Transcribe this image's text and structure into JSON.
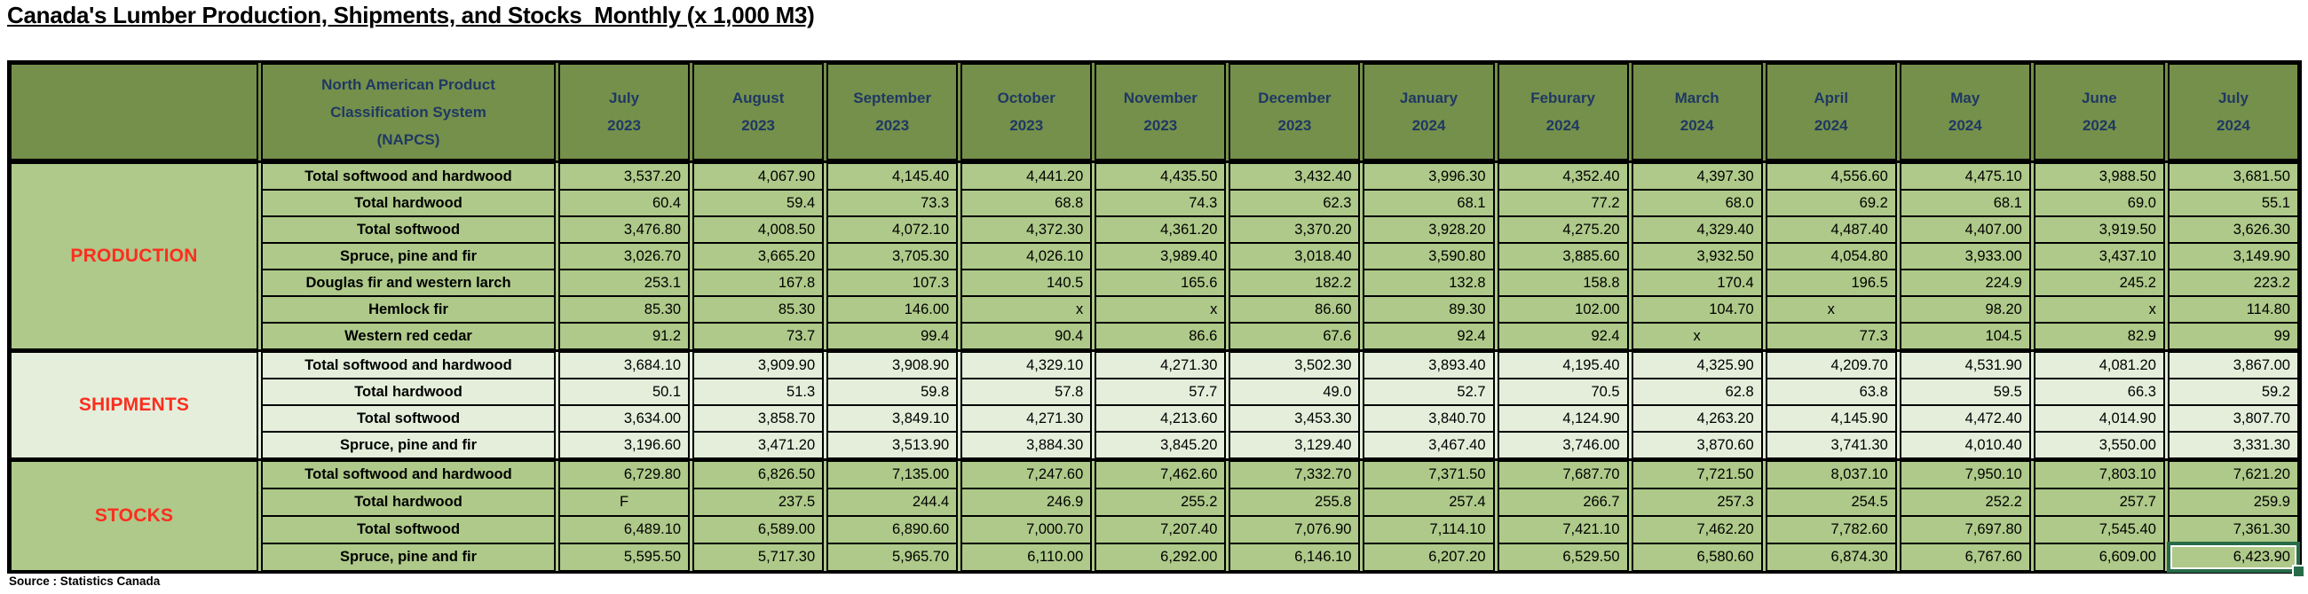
{
  "title": "Canada's Lumber Production, Shipments, and Stocks  Monthly (x 1,000 M3)",
  "source_note": "Source : Statistics Canada",
  "colors": {
    "header_bg": "#75904A",
    "band_bg": "#AEC989",
    "shipments_bg": "#E4EEDB",
    "header_text": "#1F3864",
    "section_text": "#FB2E1F",
    "selection": "#276C49",
    "grid_line": "#000000"
  },
  "header": {
    "napcs_label": "North American Product Classification System (NAPCS)",
    "columns": [
      {
        "month": "July",
        "year": "2023"
      },
      {
        "month": "August",
        "year": "2023"
      },
      {
        "month": "September",
        "year": "2023"
      },
      {
        "month": "October",
        "year": "2023"
      },
      {
        "month": "November",
        "year": "2023"
      },
      {
        "month": "December",
        "year": "2023"
      },
      {
        "month": "January",
        "year": "2024"
      },
      {
        "month": "Feburary",
        "year": "2024"
      },
      {
        "month": "March",
        "year": "2024"
      },
      {
        "month": "April",
        "year": "2024"
      },
      {
        "month": "May",
        "year": "2024"
      },
      {
        "month": "June",
        "year": "2024"
      },
      {
        "month": "July",
        "year": "2024"
      }
    ]
  },
  "sections": [
    {
      "name": "PRODUCTION",
      "rows": [
        {
          "label": "Total softwood and hardwood",
          "values": [
            "3,537.20",
            "4,067.90",
            "4,145.40",
            "4,441.20",
            "4,435.50",
            "3,432.40",
            "3,996.30",
            "4,352.40",
            "4,397.30",
            "4,556.60",
            "4,475.10",
            "3,988.50",
            "3,681.50"
          ],
          "center": []
        },
        {
          "label": "Total hardwood",
          "values": [
            "60.4",
            "59.4",
            "73.3",
            "68.8",
            "74.3",
            "62.3",
            "68.1",
            "77.2",
            "68.0",
            "69.2",
            "68.1",
            "69.0",
            "55.1"
          ],
          "center": []
        },
        {
          "label": "Total softwood",
          "values": [
            "3,476.80",
            "4,008.50",
            "4,072.10",
            "4,372.30",
            "4,361.20",
            "3,370.20",
            "3,928.20",
            "4,275.20",
            "4,329.40",
            "4,487.40",
            "4,407.00",
            "3,919.50",
            "3,626.30"
          ],
          "center": []
        },
        {
          "label": "Spruce, pine and fir",
          "values": [
            "3,026.70",
            "3,665.20",
            "3,705.30",
            "4,026.10",
            "3,989.40",
            "3,018.40",
            "3,590.80",
            "3,885.60",
            "3,932.50",
            "4,054.80",
            "3,933.00",
            "3,437.10",
            "3,149.90"
          ],
          "center": []
        },
        {
          "label": "Douglas fir and western larch",
          "values": [
            "253.1",
            "167.8",
            "107.3",
            "140.5",
            "165.6",
            "182.2",
            "132.8",
            "158.8",
            "170.4",
            "196.5",
            "224.9",
            "245.2",
            "223.2"
          ],
          "center": []
        },
        {
          "label": "Hemlock fir",
          "values": [
            "85.30",
            "85.30",
            "146.00",
            "x",
            "x",
            "86.60",
            "89.30",
            "102.00",
            "104.70",
            "x",
            "98.20",
            "x",
            "114.80"
          ],
          "center": [
            9
          ]
        },
        {
          "label": "Western red cedar",
          "values": [
            "91.2",
            "73.7",
            "99.4",
            "90.4",
            "86.6",
            "67.6",
            "92.4",
            "92.4",
            "x",
            "77.3",
            "104.5",
            "82.9",
            "99"
          ],
          "center": [
            8
          ]
        }
      ]
    },
    {
      "name": "SHIPMENTS",
      "rows": [
        {
          "label": "Total softwood and hardwood",
          "values": [
            "3,684.10",
            "3,909.90",
            "3,908.90",
            "4,329.10",
            "4,271.30",
            "3,502.30",
            "3,893.40",
            "4,195.40",
            "4,325.90",
            "4,209.70",
            "4,531.90",
            "4,081.20",
            "3,867.00"
          ],
          "center": []
        },
        {
          "label": "Total hardwood",
          "values": [
            "50.1",
            "51.3",
            "59.8",
            "57.8",
            "57.7",
            "49.0",
            "52.7",
            "70.5",
            "62.8",
            "63.8",
            "59.5",
            "66.3",
            "59.2"
          ],
          "center": []
        },
        {
          "label": "Total softwood",
          "values": [
            "3,634.00",
            "3,858.70",
            "3,849.10",
            "4,271.30",
            "4,213.60",
            "3,453.30",
            "3,840.70",
            "4,124.90",
            "4,263.20",
            "4,145.90",
            "4,472.40",
            "4,014.90",
            "3,807.70"
          ],
          "center": []
        },
        {
          "label": "Spruce, pine and fir",
          "values": [
            "3,196.60",
            "3,471.20",
            "3,513.90",
            "3,884.30",
            "3,845.20",
            "3,129.40",
            "3,467.40",
            "3,746.00",
            "3,870.60",
            "3,741.30",
            "4,010.40",
            "3,550.00",
            "3,331.30"
          ],
          "center": []
        }
      ]
    },
    {
      "name": "STOCKS",
      "rows": [
        {
          "label": "Total softwood and hardwood",
          "values": [
            "6,729.80",
            "6,826.50",
            "7,135.00",
            "7,247.60",
            "7,462.60",
            "7,332.70",
            "7,371.50",
            "7,687.70",
            "7,721.50",
            "8,037.10",
            "7,950.10",
            "7,803.10",
            "7,621.20"
          ],
          "center": []
        },
        {
          "label": "Total hardwood",
          "values": [
            "F",
            "237.5",
            "244.4",
            "246.9",
            "255.2",
            "255.8",
            "257.4",
            "266.7",
            "257.3",
            "254.5",
            "252.2",
            "257.7",
            "259.9"
          ],
          "center": [
            0
          ]
        },
        {
          "label": "Total softwood",
          "values": [
            "6,489.10",
            "6,589.00",
            "6,890.60",
            "7,000.70",
            "7,207.40",
            "7,076.90",
            "7,114.10",
            "7,421.10",
            "7,462.20",
            "7,782.60",
            "7,697.80",
            "7,545.40",
            "7,361.30"
          ],
          "center": []
        },
        {
          "label": "Spruce, pine and fir",
          "values": [
            "5,595.50",
            "5,717.30",
            "5,965.70",
            "6,110.00",
            "6,292.00",
            "6,146.10",
            "6,207.20",
            "6,529.50",
            "6,580.60",
            "6,874.30",
            "6,767.60",
            "6,609.00",
            "6,423.90"
          ],
          "center": []
        }
      ]
    }
  ],
  "selected_cell": {
    "section_index": 2,
    "row_index": 3,
    "value_index": 12,
    "value": "6,423.90"
  }
}
